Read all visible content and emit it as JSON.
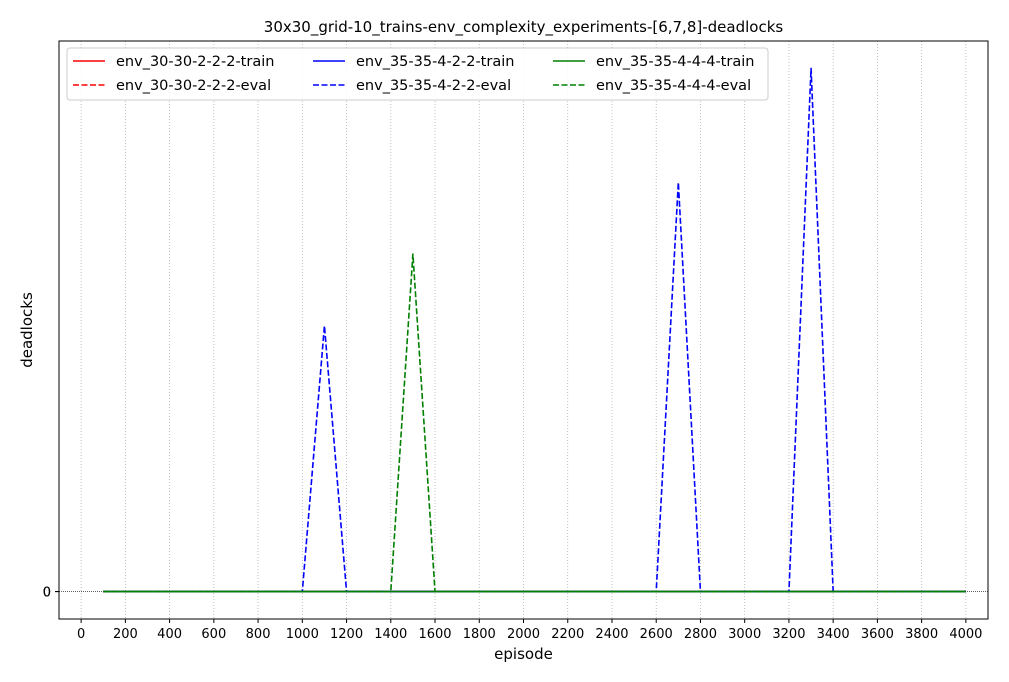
{
  "chart_data": {
    "type": "line",
    "title": "30x30_grid-10_trains-env_complexity_experiments-[6,7,8]-deadlocks",
    "xlabel": "episode",
    "ylabel": "deadlocks",
    "xlim": [
      -100,
      4100
    ],
    "ylim": [
      -0.065,
      1.305
    ],
    "xticks": [
      0,
      200,
      400,
      600,
      800,
      1000,
      1200,
      1400,
      1600,
      1800,
      2000,
      2200,
      2400,
      2600,
      2800,
      3000,
      3200,
      3400,
      3600,
      3800,
      4000
    ],
    "yticks": [
      0,
      0
    ],
    "ytick_labels": [
      "0",
      "0"
    ],
    "grid": "x",
    "zero_line": true,
    "legend_position": "top-left",
    "legend_columns": 3,
    "series": [
      {
        "name": "env_30-30-2-2-2-train",
        "color": "#ff0000",
        "style": "solid",
        "x": [
          100,
          4000
        ],
        "y": [
          0,
          0
        ]
      },
      {
        "name": "env_30-30-2-2-2-eval",
        "color": "#ff0000",
        "style": "dashed",
        "x": [
          100,
          4000
        ],
        "y": [
          0,
          0
        ]
      },
      {
        "name": "env_35-35-4-2-2-train",
        "color": "#0000ff",
        "style": "solid",
        "x": [
          100,
          4000
        ],
        "y": [
          0,
          0
        ]
      },
      {
        "name": "env_35-35-4-2-2-eval",
        "color": "#0000ff",
        "style": "dashed",
        "x": [
          100,
          1000,
          1100,
          1200,
          2600,
          2700,
          2800,
          3200,
          3300,
          3400,
          4000
        ],
        "y": [
          0,
          0,
          0.63,
          0,
          0,
          0.97,
          0,
          0,
          1.24,
          0,
          0
        ]
      },
      {
        "name": "env_35-35-4-4-4-train",
        "color": "#008000",
        "style": "solid",
        "x": [
          100,
          4000
        ],
        "y": [
          0,
          0
        ]
      },
      {
        "name": "env_35-35-4-4-4-eval",
        "color": "#008000",
        "style": "dashed",
        "x": [
          100,
          1400,
          1500,
          1600,
          4000
        ],
        "y": [
          0,
          0,
          0.8,
          0,
          0
        ]
      }
    ]
  }
}
